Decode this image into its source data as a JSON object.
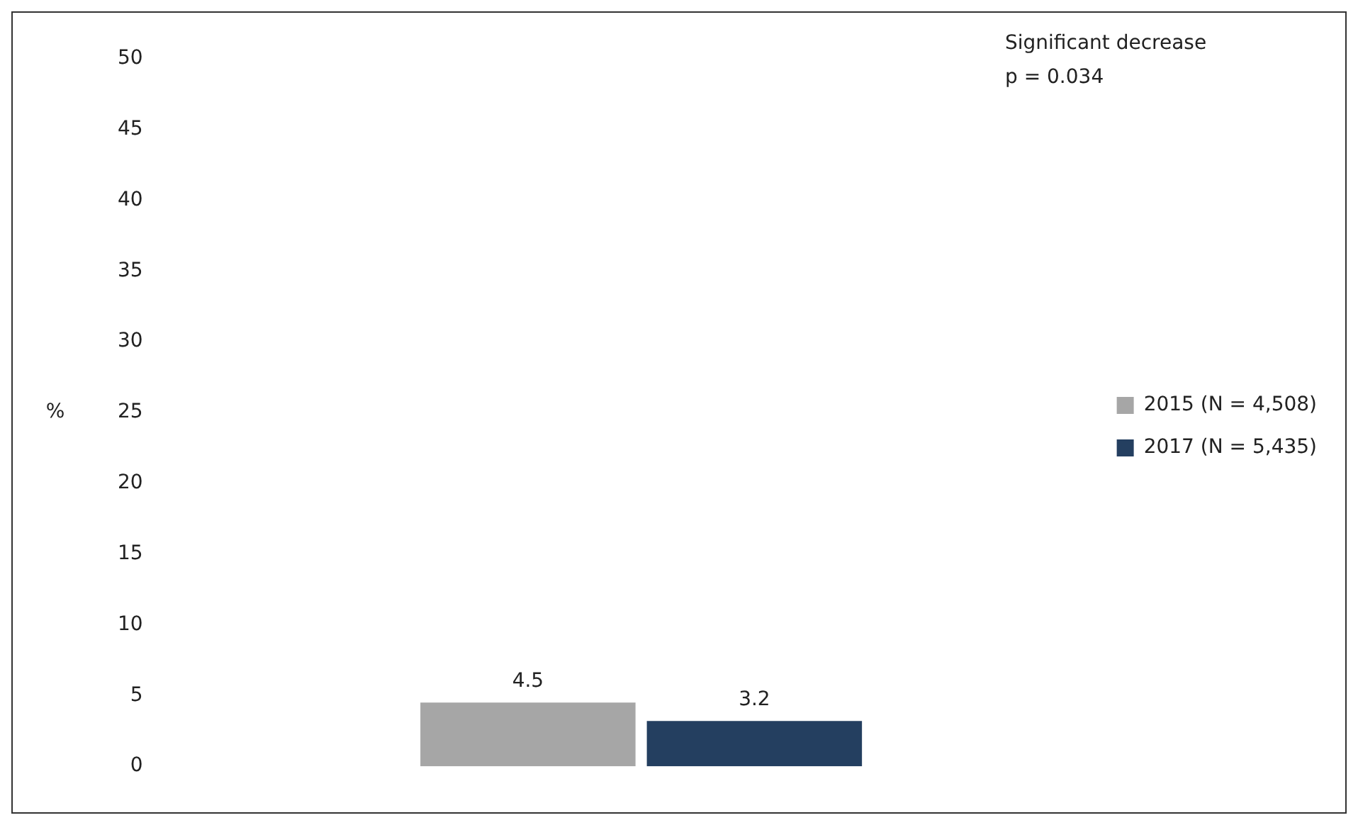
{
  "chart_data": {
    "type": "bar",
    "categories": [
      null
    ],
    "series": [
      {
        "name": "2015 (N = 4,508)",
        "color": "#a6a6a6",
        "values": [
          4.5
        ]
      },
      {
        "name": "2017 (N = 5,435)",
        "color": "#243f60",
        "values": [
          3.2
        ]
      }
    ],
    "ylabel": "%",
    "ylim": [
      0,
      50
    ],
    "yticks": [
      0,
      5,
      10,
      15,
      20,
      25,
      30,
      35,
      40,
      45,
      50
    ],
    "grid": false,
    "legend": "right",
    "data_labels": true,
    "annotations": [
      "Significant decrease",
      "p = 0.034"
    ]
  }
}
